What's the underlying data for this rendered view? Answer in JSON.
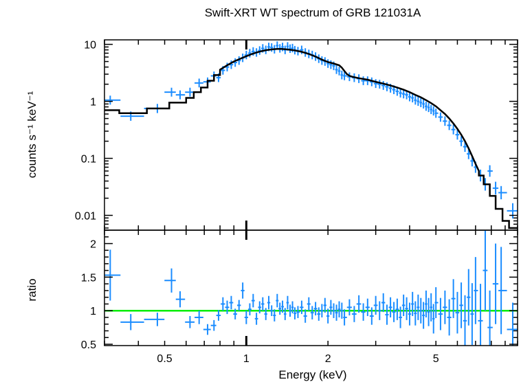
{
  "chart_data": [
    {
      "type": "scatter",
      "panel": "spectrum",
      "title": "Swift-XRT WT spectrum of GRB 121031A",
      "ylabel": "counts s⁻¹ keV⁻¹",
      "xlabel": "",
      "x_scale": "log",
      "y_scale": "log",
      "xlim": [
        0.3,
        10
      ],
      "ylim": [
        0.0055,
        12
      ],
      "grid": false,
      "y_tick_labels": [
        "10",
        "1",
        "0.1",
        "0.01"
      ],
      "y_tick_values": [
        10,
        1,
        0.1,
        0.01
      ],
      "colors": {
        "data": "#1a8cff",
        "model": "#000000"
      },
      "series": [
        {
          "kind": "data",
          "x": [
            0.315,
            0.375,
            0.47,
            0.53,
            0.57,
            0.62,
            0.67,
            0.72,
            0.76,
            0.79,
            0.82,
            0.85,
            0.88,
            0.91,
            0.94,
            0.97,
            1.0,
            1.03,
            1.06,
            1.09,
            1.12,
            1.15,
            1.18,
            1.21,
            1.24,
            1.27,
            1.3,
            1.33,
            1.36,
            1.39,
            1.42,
            1.45,
            1.48,
            1.51,
            1.55,
            1.6,
            1.65,
            1.7,
            1.75,
            1.8,
            1.85,
            1.9,
            1.95,
            2.0,
            2.05,
            2.1,
            2.15,
            2.2,
            2.25,
            2.3,
            2.4,
            2.5,
            2.6,
            2.7,
            2.8,
            2.9,
            3.0,
            3.1,
            3.2,
            3.3,
            3.4,
            3.5,
            3.6,
            3.7,
            3.8,
            3.9,
            4.0,
            4.1,
            4.2,
            4.3,
            4.4,
            4.5,
            4.6,
            4.7,
            4.8,
            4.9,
            5.0,
            5.2,
            5.4,
            5.6,
            5.8,
            6.0,
            6.2,
            6.4,
            6.6,
            6.8,
            7.0,
            7.3,
            7.6,
            7.9,
            8.3,
            8.7,
            9.6
          ],
          "y": [
            1.05,
            0.55,
            0.75,
            1.45,
            1.3,
            1.45,
            2.1,
            2.2,
            2.8,
            2.6,
            3.5,
            4.0,
            4.4,
            4.8,
            5.2,
            5.8,
            6.5,
            7.0,
            7.5,
            7.2,
            7.8,
            8.5,
            8.0,
            9.0,
            8.8,
            8.2,
            9.5,
            8.5,
            9.0,
            8.0,
            9.2,
            8.4,
            8.6,
            7.9,
            7.6,
            8.0,
            7.2,
            6.8,
            6.5,
            6.1,
            5.6,
            5.2,
            5.0,
            4.6,
            4.4,
            4.2,
            3.6,
            3.4,
            2.9,
            2.8,
            2.7,
            2.6,
            2.5,
            2.3,
            2.3,
            2.2,
            2.05,
            2.0,
            1.9,
            1.8,
            1.7,
            1.6,
            1.5,
            1.4,
            1.35,
            1.3,
            1.2,
            1.15,
            1.05,
            1.0,
            0.95,
            0.9,
            0.82,
            0.78,
            0.72,
            0.68,
            0.62,
            0.53,
            0.45,
            0.38,
            0.32,
            0.26,
            0.2,
            0.16,
            0.12,
            0.09,
            0.07,
            0.05,
            0.035,
            0.06,
            0.03,
            0.025,
            0.012
          ]
        },
        {
          "kind": "model",
          "x": [
            0.3,
            0.34,
            0.34,
            0.43,
            0.43,
            0.52,
            0.52,
            0.6,
            0.6,
            0.64,
            0.64,
            0.68,
            0.68,
            0.72,
            0.72,
            0.76,
            0.76,
            0.8,
            0.8,
            0.85,
            0.9,
            0.95,
            1.0,
            1.05,
            1.1,
            1.15,
            1.2,
            1.25,
            1.3,
            1.35,
            1.4,
            1.5,
            1.6,
            1.7,
            1.8,
            1.9,
            2.0,
            2.1,
            2.2,
            2.25,
            2.3,
            2.35,
            2.4,
            2.5,
            2.6,
            2.8,
            3.0,
            3.2,
            3.4,
            3.6,
            3.8,
            4.0,
            4.2,
            4.4,
            4.6,
            4.8,
            5.0,
            5.2,
            5.4,
            5.6,
            5.8,
            6.0,
            6.2,
            6.4,
            6.6,
            6.8,
            7.0,
            7.2,
            7.2,
            7.5,
            7.5,
            7.9,
            7.9,
            8.3,
            8.3,
            8.8,
            8.8,
            9.3,
            9.3,
            10.0
          ],
          "y": [
            0.7,
            0.7,
            0.62,
            0.62,
            0.75,
            0.75,
            0.95,
            0.95,
            1.15,
            1.15,
            1.45,
            1.45,
            1.75,
            1.75,
            2.3,
            2.3,
            2.9,
            2.9,
            3.6,
            4.3,
            5.0,
            5.6,
            6.2,
            6.8,
            7.3,
            7.7,
            8.0,
            8.2,
            8.3,
            8.3,
            8.2,
            7.9,
            7.4,
            6.8,
            6.1,
            5.4,
            4.9,
            4.6,
            4.3,
            3.9,
            3.4,
            3.0,
            2.8,
            2.65,
            2.55,
            2.4,
            2.2,
            2.05,
            1.9,
            1.75,
            1.6,
            1.45,
            1.3,
            1.18,
            1.05,
            0.93,
            0.82,
            0.7,
            0.6,
            0.5,
            0.41,
            0.33,
            0.26,
            0.2,
            0.15,
            0.11,
            0.08,
            0.06,
            0.05,
            0.05,
            0.035,
            0.035,
            0.022,
            0.022,
            0.013,
            0.013,
            0.008,
            0.008,
            0.006,
            0.006
          ]
        }
      ]
    },
    {
      "type": "scatter",
      "panel": "ratio",
      "title": "",
      "xlabel": "Energy (keV)",
      "ylabel": "ratio",
      "x_scale": "log",
      "y_scale": "linear",
      "xlim": [
        0.3,
        10
      ],
      "ylim": [
        0.48,
        2.2
      ],
      "grid": false,
      "x_tick_labels": [
        "0.5",
        "1",
        "2",
        "5"
      ],
      "x_tick_values": [
        0.5,
        1,
        2,
        5
      ],
      "y_tick_labels": [
        "2",
        "1.5",
        "1",
        "0.5"
      ],
      "y_tick_values": [
        2,
        1.5,
        1,
        0.5
      ],
      "colors": {
        "data": "#1a8cff",
        "reference": "#00ee00"
      },
      "reference_line": 1.0,
      "series": [
        {
          "kind": "data",
          "x": [
            0.315,
            0.375,
            0.47,
            0.53,
            0.57,
            0.62,
            0.67,
            0.72,
            0.76,
            0.79,
            0.82,
            0.85,
            0.88,
            0.91,
            0.94,
            0.97,
            1.0,
            1.03,
            1.06,
            1.09,
            1.12,
            1.15,
            1.18,
            1.21,
            1.24,
            1.27,
            1.3,
            1.33,
            1.36,
            1.39,
            1.42,
            1.45,
            1.48,
            1.51,
            1.55,
            1.6,
            1.65,
            1.7,
            1.75,
            1.8,
            1.85,
            1.9,
            1.95,
            2.0,
            2.05,
            2.1,
            2.15,
            2.2,
            2.25,
            2.3,
            2.4,
            2.5,
            2.6,
            2.7,
            2.8,
            2.9,
            3.0,
            3.1,
            3.2,
            3.3,
            3.4,
            3.5,
            3.6,
            3.7,
            3.8,
            3.9,
            4.0,
            4.1,
            4.2,
            4.3,
            4.4,
            4.5,
            4.6,
            4.7,
            4.8,
            4.9,
            5.0,
            5.2,
            5.4,
            5.6,
            5.8,
            6.0,
            6.2,
            6.4,
            6.6,
            6.8,
            7.0,
            7.3,
            7.6,
            7.9,
            8.3,
            8.7,
            9.6
          ],
          "y": [
            1.53,
            0.83,
            0.87,
            1.45,
            1.17,
            0.83,
            0.9,
            0.72,
            0.78,
            0.93,
            1.1,
            1.05,
            1.12,
            0.95,
            1.08,
            1.3,
            0.9,
            1.02,
            1.15,
            0.88,
            1.05,
            1.1,
            0.95,
            1.12,
            1.0,
            0.93,
            1.15,
            1.03,
            1.06,
            0.95,
            1.12,
            1.0,
            1.05,
            0.96,
            0.98,
            1.05,
            0.92,
            1.1,
            0.97,
            1.03,
            0.95,
            1.0,
            1.08,
            0.92,
            1.05,
            1.0,
            0.97,
            1.02,
            1.0,
            0.9,
            1.05,
            0.95,
            1.1,
            0.98,
            1.05,
            0.92,
            1.08,
            1.0,
            1.12,
            0.94,
            1.05,
            0.98,
            1.02,
            0.9,
            1.08,
            1.03,
            0.95,
            1.1,
            0.96,
            1.05,
            1.0,
            0.93,
            1.1,
            0.98,
            1.05,
            0.88,
            1.12,
            0.95,
            1.05,
            0.9,
            1.18,
            0.97,
            1.08,
            0.85,
            1.2,
            0.95,
            1.3,
            0.85,
            1.6,
            0.75,
            1.4,
            1.3,
            0.72
          ],
          "yerr": [
            0.38,
            0.12,
            0.1,
            0.18,
            0.12,
            0.09,
            0.1,
            0.08,
            0.08,
            0.08,
            0.1,
            0.1,
            0.1,
            0.08,
            0.08,
            0.12,
            0.1,
            0.09,
            0.1,
            0.09,
            0.09,
            0.1,
            0.09,
            0.1,
            0.08,
            0.09,
            0.1,
            0.09,
            0.09,
            0.09,
            0.1,
            0.09,
            0.09,
            0.09,
            0.09,
            0.1,
            0.1,
            0.1,
            0.1,
            0.1,
            0.1,
            0.1,
            0.11,
            0.11,
            0.11,
            0.11,
            0.12,
            0.12,
            0.12,
            0.12,
            0.12,
            0.12,
            0.13,
            0.13,
            0.13,
            0.13,
            0.14,
            0.14,
            0.14,
            0.15,
            0.15,
            0.15,
            0.16,
            0.16,
            0.16,
            0.17,
            0.17,
            0.18,
            0.18,
            0.19,
            0.19,
            0.2,
            0.2,
            0.21,
            0.21,
            0.22,
            0.23,
            0.24,
            0.25,
            0.27,
            0.29,
            0.31,
            0.34,
            0.38,
            0.42,
            0.46,
            0.5,
            0.55,
            0.6,
            0.55,
            0.6,
            0.65,
            0.4
          ]
        }
      ]
    }
  ]
}
